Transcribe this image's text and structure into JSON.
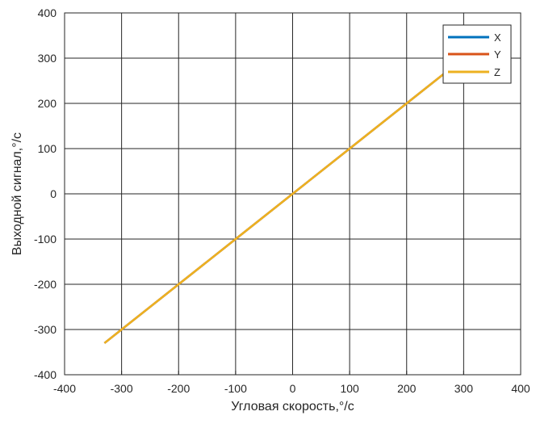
{
  "chart_data": {
    "type": "line",
    "xlabel": "Угловая скорость,°/с",
    "ylabel": "Выходной сигнал,°/с",
    "xlim": [
      -400,
      400
    ],
    "ylim": [
      -400,
      400
    ],
    "xticks": [
      -400,
      -300,
      -200,
      -100,
      0,
      100,
      200,
      300,
      400
    ],
    "yticks": [
      -400,
      -300,
      -200,
      -100,
      0,
      100,
      200,
      300,
      400
    ],
    "xtick_labels": [
      "-400",
      "-300",
      "-200",
      "-100",
      "0",
      "100",
      "200",
      "300",
      "400"
    ],
    "ytick_labels": [
      "-400",
      "-300",
      "-200",
      "-100",
      "0",
      "100",
      "200",
      "300",
      "400"
    ],
    "grid": true,
    "legend_position": "top-right",
    "series": [
      {
        "name": "X",
        "color": "#0072BD",
        "x": [
          -330,
          -300,
          -200,
          -100,
          0,
          100,
          200,
          300,
          330
        ],
        "y": [
          -330,
          -300,
          -200,
          -100,
          0,
          100,
          200,
          300,
          330
        ]
      },
      {
        "name": "Y",
        "color": "#D95319",
        "x": [
          -330,
          -300,
          -200,
          -100,
          0,
          100,
          200,
          300,
          330
        ],
        "y": [
          -330,
          -300,
          -200,
          -100,
          0,
          100,
          200,
          300,
          330
        ]
      },
      {
        "name": "Z",
        "color": "#EDB120",
        "x": [
          -330,
          -300,
          -200,
          -100,
          0,
          100,
          200,
          300,
          330
        ],
        "y": [
          -330,
          -300,
          -200,
          -100,
          0,
          100,
          200,
          300,
          330
        ]
      }
    ]
  }
}
